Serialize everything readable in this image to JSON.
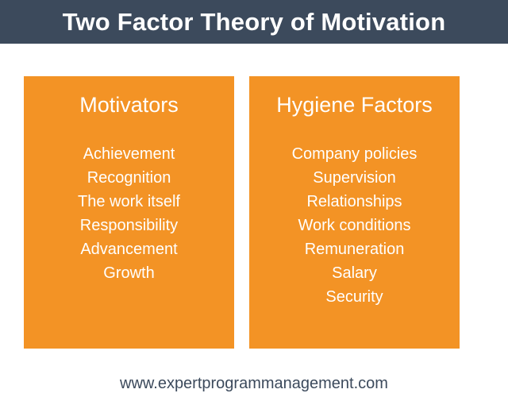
{
  "header": {
    "title": "Two Factor Theory of Motivation"
  },
  "motivators": {
    "title": "Motivators",
    "items": [
      "Achievement",
      "Recognition",
      "The work itself",
      "Responsibility",
      "Advancement",
      "Growth"
    ]
  },
  "hygiene": {
    "title": "Hygiene Factors",
    "items": [
      "Company policies",
      "Supervision",
      "Relationships",
      "Work conditions",
      "Remuneration",
      "Salary",
      "Security"
    ]
  },
  "footer": {
    "url": "www.expertprogrammanagement.com"
  },
  "colors": {
    "header_bg": "#3c4a5c",
    "panel_bg": "#f39325",
    "text_light": "#ffffff",
    "footer_text": "#3c4a5c"
  }
}
